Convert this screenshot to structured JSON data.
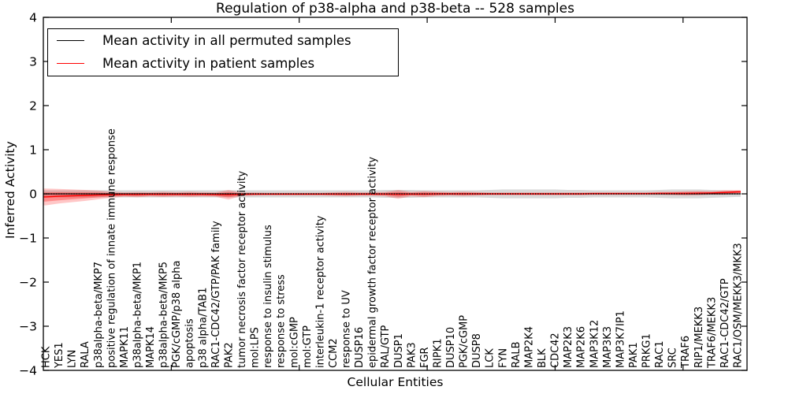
{
  "chart": {
    "title": "Regulation of p38-alpha and p38-beta -- 528 samples",
    "xlabel": "Cellular Entities",
    "ylabel": "Inferred Activity",
    "legend": [
      {
        "label": "Mean activity in all permuted samples",
        "color": "#000000"
      },
      {
        "label": "Mean activity in patient samples",
        "color": "#ff0000"
      }
    ]
  },
  "chart_data": {
    "type": "line",
    "title": "Regulation of p38-alpha and p38-beta -- 528 samples",
    "xlabel": "Cellular Entities",
    "ylabel": "Inferred Activity",
    "ylim": [
      -4,
      4
    ],
    "yticks": [
      -4,
      -3,
      -2,
      -1,
      0,
      1,
      2,
      3,
      4
    ],
    "xlim": [
      0,
      55
    ],
    "x_major_ticks": [
      10,
      20,
      30,
      40,
      50
    ],
    "grid": false,
    "legend_position": "upper left",
    "categories": [
      "HCK",
      "YES1",
      "LYN",
      "RALA",
      "p38alpha-beta/MKP7",
      "positive regulation of innate immune response",
      "MAPK11",
      "p38alpha-beta/MKP1",
      "MAPK14",
      "p38alpha-beta/MKP5",
      "PGK/cGMP/p38 alpha",
      "apoptosis",
      "p38 alpha/TAB1",
      "RAC1-CDC42/GTP/PAK family",
      "PAK2",
      "tumor necrosis factor receptor activity",
      "mol:LPS",
      "response to insulin stimulus",
      "response to stress",
      "mol:cGMP",
      "mol:GTP",
      "interleukin-1 receptor activity",
      "CCM2",
      "response to UV",
      "DUSP16",
      "epidermal growth factor receptor activity",
      "RAL/GTP",
      "DUSP1",
      "PAK3",
      "FGR",
      "RIPK1",
      "DUSP10",
      "PGK/cGMP",
      "DUSP8",
      "LCK",
      "FYN",
      "RALB",
      "MAP2K4",
      "BLK",
      "CDC42",
      "MAP2K3",
      "MAP2K6",
      "MAP3K12",
      "MAP3K3",
      "MAP3K7IP1",
      "PAK1",
      "PRKG1",
      "RAC1",
      "SRC",
      "TRAF6",
      "RIP1/MEKK3",
      "TRAF6/MEKK3",
      "RAC1-CDC42/GTP",
      "RAC1/OSM/MEKK3/MKK3"
    ],
    "series": [
      {
        "name": "Mean activity in all permuted samples",
        "color": "#000000",
        "line_style": "solid with dotted overlay",
        "values_constant": 0.0,
        "band_halfwidth": [
          0.08,
          0.08,
          0.08,
          0.08,
          0.08,
          0.08,
          0.08,
          0.08,
          0.08,
          0.08,
          0.08,
          0.08,
          0.08,
          0.08,
          0.08,
          0.08,
          0.08,
          0.08,
          0.08,
          0.08,
          0.08,
          0.08,
          0.08,
          0.08,
          0.08,
          0.08,
          0.09,
          0.09,
          0.09,
          0.08,
          0.08,
          0.08,
          0.08,
          0.08,
          0.09,
          0.1,
          0.1,
          0.1,
          0.1,
          0.1,
          0.09,
          0.09,
          0.08,
          0.08,
          0.08,
          0.08,
          0.08,
          0.09,
          0.1,
          0.1,
          0.1,
          0.09,
          0.08,
          0.07
        ],
        "band_color": "#d9d9d9"
      },
      {
        "name": "Mean activity in patient samples",
        "color": "#ff0000",
        "line_style": "solid",
        "values": [
          -0.07,
          -0.055,
          -0.045,
          -0.035,
          -0.025,
          -0.02,
          -0.015,
          -0.015,
          -0.01,
          -0.01,
          -0.01,
          -0.01,
          -0.01,
          -0.015,
          -0.02,
          -0.01,
          -0.005,
          -0.005,
          -0.005,
          -0.005,
          -0.005,
          -0.005,
          -0.005,
          -0.005,
          -0.005,
          -0.005,
          -0.005,
          -0.01,
          -0.005,
          -0.005,
          0,
          0,
          0,
          0,
          0,
          0,
          0,
          0,
          0,
          0,
          0,
          0,
          0.005,
          0.005,
          0.005,
          0.005,
          0.005,
          0.01,
          0.01,
          0.01,
          0.015,
          0.02,
          0.03,
          0.045
        ],
        "band_halfwidth": [
          0.19,
          0.165,
          0.145,
          0.125,
          0.1,
          0.07,
          0.05,
          0.06,
          0.05,
          0.06,
          0.05,
          0.06,
          0.05,
          0.05,
          0.11,
          0.04,
          0.035,
          0.03,
          0.03,
          0.03,
          0.03,
          0.03,
          0.04,
          0.05,
          0.04,
          0.04,
          0.05,
          0.1,
          0.05,
          0.07,
          0.05,
          0.04,
          0.05,
          0.04,
          0.03,
          0.03,
          0.03,
          0.03,
          0.03,
          0.03,
          0.03,
          0.03,
          0.03,
          0.03,
          0.03,
          0.03,
          0.03,
          0.035,
          0.04,
          0.05,
          0.05,
          0.04,
          0.05,
          0.04
        ],
        "band_color": "#f4a6a6"
      }
    ]
  }
}
